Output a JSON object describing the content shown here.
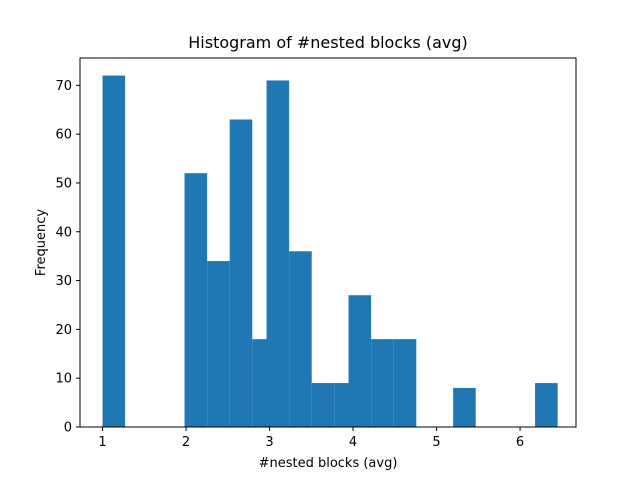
{
  "chart_data": {
    "type": "bar",
    "title": "Histogram of #nested blocks (avg)",
    "xlabel": "#nested blocks (avg)",
    "ylabel": "Frequency",
    "bar_color": "#1f77b4",
    "xlim": [
      0.73,
      6.67
    ],
    "ylim": [
      0,
      75.6
    ],
    "bin_width": 0.2705,
    "bins": [
      {
        "start": 1.0,
        "count": 72
      },
      {
        "start": 1.2705,
        "count": 0
      },
      {
        "start": 1.541,
        "count": 0
      },
      {
        "start": 1.8115,
        "count": 0
      },
      {
        "start": 1.982,
        "count": 52
      },
      {
        "start": 2.2525,
        "count": 34
      },
      {
        "start": 2.523,
        "count": 63
      },
      {
        "start": 2.7935,
        "count": 18
      },
      {
        "start": 2.964,
        "count": 71
      },
      {
        "start": 3.2345,
        "count": 36
      },
      {
        "start": 3.505,
        "count": 9
      },
      {
        "start": 3.7755,
        "count": 9
      },
      {
        "start": 3.946,
        "count": 27
      },
      {
        "start": 4.2165,
        "count": 18
      },
      {
        "start": 4.487,
        "count": 18
      },
      {
        "start": 4.7575,
        "count": 0
      },
      {
        "start": 4.928,
        "count": 0
      },
      {
        "start": 5.1985,
        "count": 8
      },
      {
        "start": 5.469,
        "count": 0
      },
      {
        "start": 5.7395,
        "count": 0
      },
      {
        "start": 5.91,
        "count": 0
      },
      {
        "start": 6.18,
        "count": 9
      }
    ],
    "xticks": [
      1,
      2,
      3,
      4,
      5,
      6
    ],
    "yticks": [
      0,
      10,
      20,
      30,
      40,
      50,
      60,
      70
    ],
    "grid": false,
    "legend": "none"
  }
}
